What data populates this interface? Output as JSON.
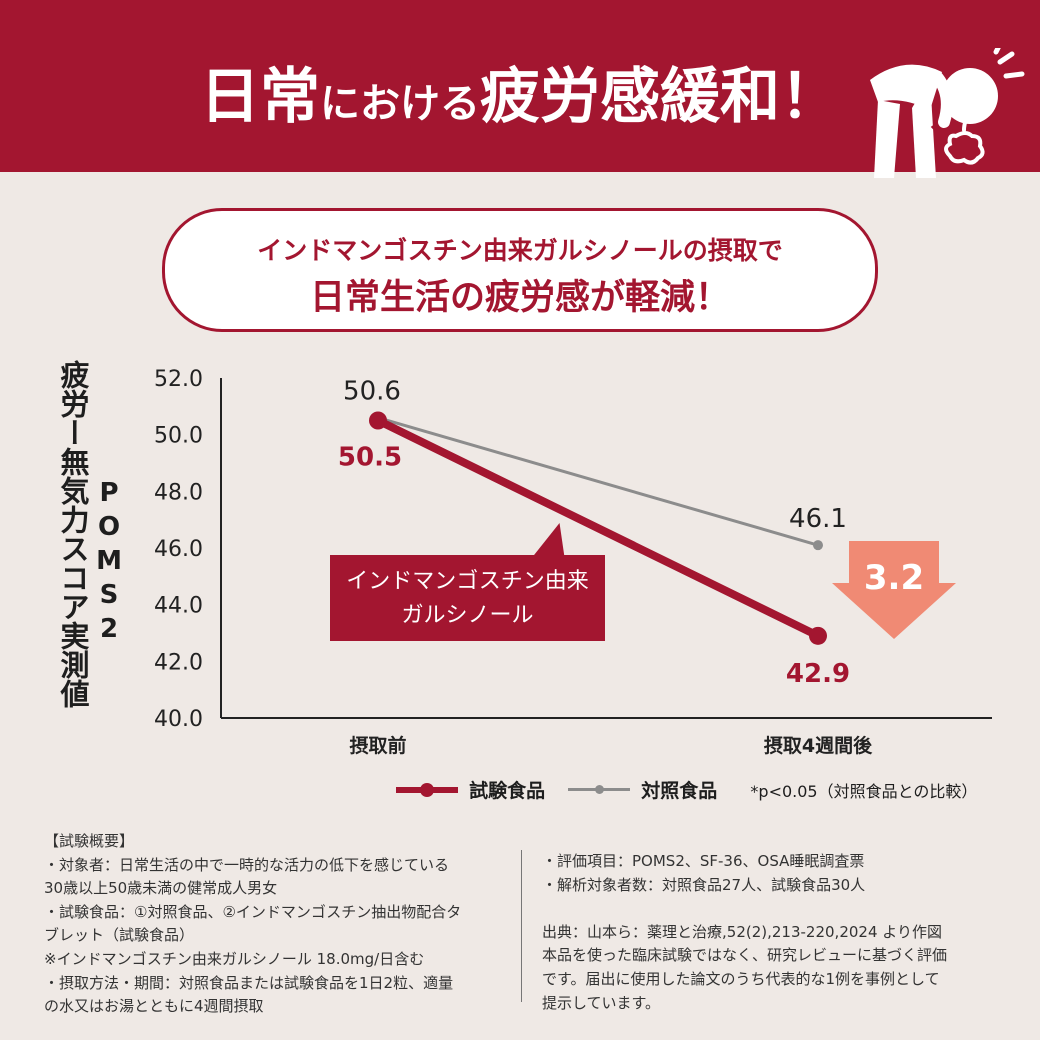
{
  "header": {
    "title_part1": "日常",
    "title_part2": "における",
    "title_part3": "疲労感緩和！"
  },
  "headline": {
    "line1": "インドマンゴスチン由来ガルシノールの摂取で",
    "line2": "日常生活の疲労感が軽減！"
  },
  "chart_data": {
    "type": "line",
    "title": "",
    "ylabel": "疲労ー無気力スコア実測値",
    "ylabel_secondary": "POMS2",
    "ylim": [
      40.0,
      52.0
    ],
    "yticks": [
      "52.0",
      "50.0",
      "48.0",
      "46.0",
      "44.0",
      "42.0",
      "40.0"
    ],
    "categories": [
      "摂取前",
      "摂取4週間後"
    ],
    "series": [
      {
        "name": "試験食品",
        "values": [
          50.5,
          42.9
        ],
        "labels": [
          "50.5",
          "42.9"
        ],
        "color": "#a31630"
      },
      {
        "name": "対照食品",
        "values": [
          50.6,
          46.1
        ],
        "labels": [
          "50.6",
          "46.1"
        ],
        "color": "#8c8c8c"
      }
    ],
    "callout": "インドマンゴスチン由来\nガルシノール",
    "difference": "3.2",
    "difference_color": "#f08a74",
    "legend_position": "bottom",
    "grid": false
  },
  "note": "*p<0.05（対照食品との比較）",
  "summary": {
    "left": [
      "【試験概要】",
      "・対象者：日常生活の中で一時的な活力の低下を感じている",
      "30歳以上50歳未満の健常成人男女",
      "・試験食品：①対照食品、②インドマンゴスチン抽出物配合タ",
      "ブレット（試験食品）",
      "※インドマンゴスチン由来ガルシノール 18.0mg/日含む",
      "・摂取方法・期間：対照食品または試験食品を1日2粒、適量",
      "の水又はお湯とともに4週間摂取"
    ],
    "right": [
      "・評価項目：POMS2、SF-36、OSA睡眠調査票",
      "・解析対象者数：対照食品27人、試験食品30人",
      "",
      "出典：山本ら：薬理と治療,52(2),213-220,2024 より作図",
      "本品を使った臨床試験ではなく、研究レビューに基づく評価",
      "です。届出に使用した論文のうち代表的な1例を事例として",
      "提示しています。"
    ]
  },
  "colors": {
    "accent": "#a31630",
    "control": "#8c8c8c",
    "background": "#efe9e5",
    "arrow": "#f08a74"
  }
}
